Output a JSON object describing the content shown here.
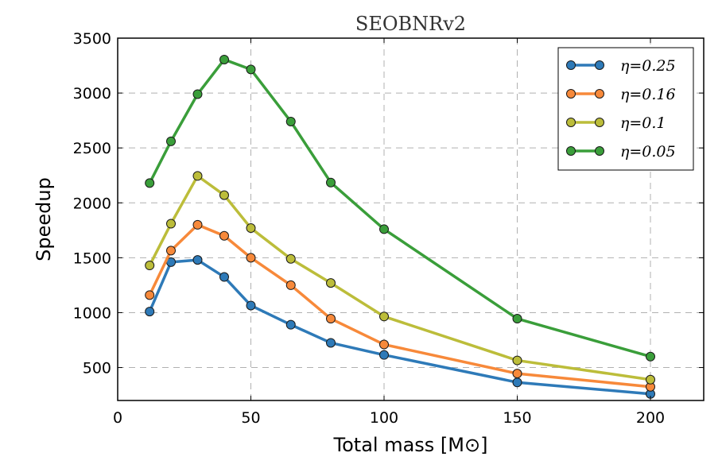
{
  "chart_data": {
    "type": "line",
    "title": "SEOBNRv2",
    "xlabel": "Total mass [M⊙]",
    "ylabel": "Speedup",
    "xlim": [
      0,
      220
    ],
    "ylim": [
      200,
      3500
    ],
    "xticks": [
      "0",
      "50",
      "100",
      "150",
      "200"
    ],
    "yticks": [
      "500",
      "1000",
      "1500",
      "2000",
      "2500",
      "3000",
      "3500"
    ],
    "grid": true,
    "legend_position": "top-right",
    "x": [
      12,
      20,
      30,
      40,
      50,
      65,
      80,
      100,
      150,
      200
    ],
    "series": [
      {
        "name": "η=0.25",
        "color": "#2e7ab8",
        "values": [
          1010,
          1460,
          1480,
          1325,
          1065,
          890,
          725,
          615,
          365,
          260
        ]
      },
      {
        "name": "η=0.16",
        "color": "#f7893a",
        "values": [
          1160,
          1565,
          1800,
          1700,
          1500,
          1250,
          945,
          710,
          445,
          325
        ]
      },
      {
        "name": "η=0.1",
        "color": "#bcbd3a",
        "values": [
          1430,
          1810,
          2245,
          2070,
          1770,
          1490,
          1270,
          965,
          565,
          390
        ]
      },
      {
        "name": "η=0.05",
        "color": "#3a9e3a",
        "values": [
          2180,
          2560,
          2990,
          3305,
          3215,
          2740,
          2185,
          1760,
          945,
          600
        ]
      }
    ]
  }
}
